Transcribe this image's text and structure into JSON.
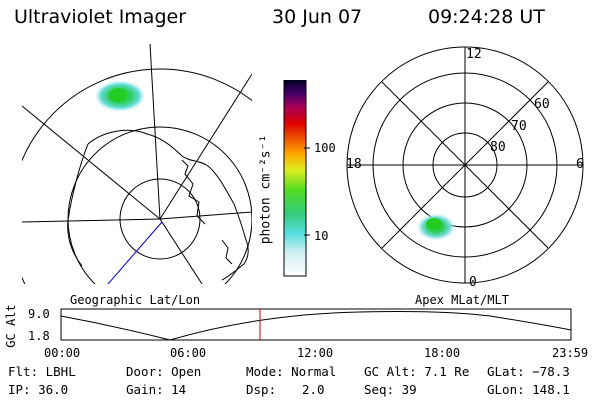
{
  "header": {
    "instrument": "Ultraviolet Imager",
    "date": "30 Jun 07",
    "time": "09:24:28 UT"
  },
  "colorbar": {
    "label": "photon cm⁻²s⁻¹",
    "ticks": [
      "100",
      "10"
    ]
  },
  "geo_panel": {
    "label": "Geographic Lat/Lon"
  },
  "mlt_panel": {
    "label": "Apex MLat/MLT",
    "hour_labels": [
      "12",
      "18",
      "6",
      "0"
    ],
    "lat_labels": [
      "60",
      "70",
      "80"
    ]
  },
  "altitude_plot": {
    "ylabel": "GC Alt",
    "y_ticks": [
      "9.0",
      "1.8"
    ],
    "x_ticks": [
      "00:00",
      "06:00",
      "12:00",
      "18:00",
      "23:59"
    ],
    "marker_time": "09:24"
  },
  "status": {
    "flt": "Flt: LBHL",
    "ip": "IP: 36.0",
    "door": "Door: Open",
    "gain": "Gain: 14",
    "mode": "Mode: Normal",
    "dsp_label": "Dsp:",
    "dsp_value": "2.0",
    "gc_alt": "GC Alt: 7.1 Re",
    "seq": "Seq: 39",
    "glat": "GLat: −78.3",
    "glon": "GLon: 148.1"
  },
  "colors": {
    "background": "#ffffff",
    "foreground": "#000000",
    "marker": "#cc0000",
    "track": "#0000cc"
  }
}
